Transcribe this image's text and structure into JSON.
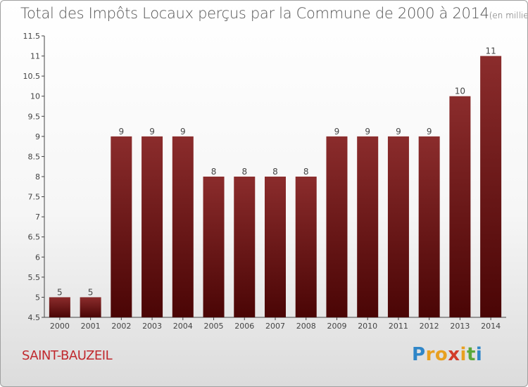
{
  "header": {
    "title": "Total des Impôts Locaux perçus par la Commune de 2000 à 2014",
    "unit": "(en milliers d'€)"
  },
  "footer": {
    "commune": "SAINT-BAUZEIL",
    "logo_letters": [
      "P",
      "r",
      "o",
      "x",
      "i",
      "t",
      "i"
    ],
    "logo_colors": [
      "#2f86c8",
      "#e8a020",
      "#e8a020",
      "#d23c2a",
      "#e8a020",
      "#5aa83a",
      "#2f86c8"
    ]
  },
  "colors": {
    "bar_top": "#8b2c2c",
    "bar_bottom": "#4a0505",
    "axis": "#444444",
    "text": "#444444"
  },
  "chart_data": {
    "type": "bar",
    "title": "Total des Impôts Locaux perçus par la Commune de 2000 à 2014",
    "xlabel": "",
    "ylabel": "",
    "ylim": [
      4.5,
      11.5
    ],
    "yticks": [
      4.5,
      5,
      5.5,
      6,
      6.5,
      7,
      7.5,
      8,
      8.5,
      9,
      9.5,
      10,
      10.5,
      11,
      11.5
    ],
    "ytick_labels": [
      "4.5",
      "5",
      "5.5",
      "6",
      "6.5",
      "7",
      "7.5",
      "8",
      "8.5",
      "9",
      "9.5",
      "10",
      "10.5",
      "11",
      "11.5"
    ],
    "categories": [
      "2000",
      "2001",
      "2002",
      "2003",
      "2004",
      "2005",
      "2006",
      "2007",
      "2008",
      "2009",
      "2010",
      "2011",
      "2012",
      "2013",
      "2014"
    ],
    "values": [
      5,
      5,
      9,
      9,
      9,
      8,
      8,
      8,
      8,
      9,
      9,
      9,
      9,
      10,
      11
    ],
    "value_labels": [
      "5",
      "5",
      "9",
      "9",
      "9",
      "8",
      "8",
      "8",
      "8",
      "9",
      "9",
      "9",
      "9",
      "10",
      "11"
    ]
  }
}
